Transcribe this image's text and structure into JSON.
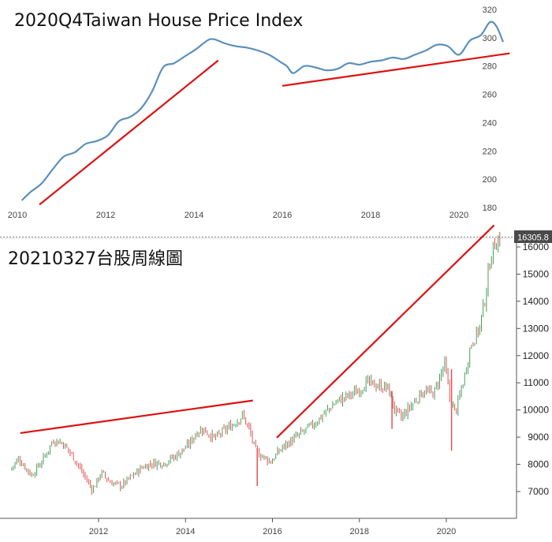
{
  "chart_data": [
    {
      "type": "line",
      "title": "2020Q4Taiwan House Price Index",
      "xlim": [
        2010,
        2021.5
      ],
      "ylim": [
        180,
        320
      ],
      "x_ticks": [
        "2010",
        "2012",
        "2014",
        "2016",
        "2018",
        "2020"
      ],
      "y_ticks": [
        "320",
        "300",
        "280",
        "260",
        "240",
        "220",
        "200",
        "180"
      ],
      "grid": false,
      "colors": {
        "series": "#5b8fbd",
        "trend": "#dd1111"
      },
      "series": [
        {
          "x": [
            2010.1,
            2010.3,
            2010.55,
            2010.8,
            2011.05,
            2011.3,
            2011.55,
            2011.8,
            2012.05,
            2012.3,
            2012.55,
            2012.8,
            2013.05,
            2013.3,
            2013.55,
            2013.8,
            2014.05,
            2014.3,
            2014.45,
            2014.7,
            2014.95,
            2015.2,
            2015.45,
            2015.7,
            2015.95,
            2016.1,
            2016.25,
            2016.5,
            2016.75,
            2017.0,
            2017.25,
            2017.5,
            2017.75,
            2018.0,
            2018.25,
            2018.5,
            2018.75,
            2019.0,
            2019.25,
            2019.5,
            2019.75,
            2020.0,
            2020.25,
            2020.5,
            2020.7,
            2020.85,
            2021.0
          ],
          "y": [
            185,
            191,
            197,
            207,
            216,
            219,
            225,
            227,
            231,
            241,
            244,
            250,
            262,
            279,
            282,
            287,
            292,
            298,
            299,
            296,
            294,
            293,
            291,
            288,
            283,
            280,
            275,
            280,
            279,
            277,
            278,
            282,
            281,
            283,
            284,
            286,
            285,
            288,
            291,
            295,
            294,
            288,
            298,
            302,
            311,
            308,
            297
          ]
        }
      ],
      "trendlines": [
        {
          "from": [
            2010.5,
            182
          ],
          "to": [
            2014.55,
            284
          ]
        },
        {
          "from": [
            2016.0,
            266
          ],
          "to": [
            2021.15,
            289
          ]
        }
      ]
    },
    {
      "type": "candlestick",
      "title": "20210327台股周線圖",
      "xlim": [
        2010.0,
        2021.6
      ],
      "ylim": [
        6000,
        16900
      ],
      "x_ticks": [
        "2012",
        "2014",
        "2016",
        "2018",
        "2020"
      ],
      "y_ticks": [
        "7000",
        "8000",
        "9000",
        "10000",
        "11000",
        "12000",
        "13000",
        "14000",
        "15000",
        "16000"
      ],
      "last_price_label": "16305.8",
      "last_price": 16305.8,
      "grid": false,
      "colors": {
        "up": "#4a9e5c",
        "down": "#e05555",
        "trend": "#dd1111",
        "axis": "#555555",
        "badge": "#4a4a4a"
      },
      "trendlines": [
        {
          "from": [
            2010.2,
            9150
          ],
          "to": [
            2015.55,
            10350
          ]
        },
        {
          "from": [
            2016.1,
            8980
          ],
          "to": [
            2021.1,
            16800
          ]
        }
      ],
      "path_points": [
        [
          2010.0,
          7800
        ],
        [
          2010.2,
          8200
        ],
        [
          2010.5,
          7600
        ],
        [
          2010.75,
          8150
        ],
        [
          2011.0,
          8900
        ],
        [
          2011.2,
          8800
        ],
        [
          2011.45,
          8300
        ],
        [
          2011.7,
          7600
        ],
        [
          2011.9,
          7050
        ],
        [
          2012.1,
          7700
        ],
        [
          2012.3,
          7350
        ],
        [
          2012.55,
          7200
        ],
        [
          2012.8,
          7550
        ],
        [
          2013.05,
          7900
        ],
        [
          2013.3,
          8050
        ],
        [
          2013.55,
          8050
        ],
        [
          2013.8,
          8300
        ],
        [
          2014.1,
          8700
        ],
        [
          2014.3,
          9200
        ],
        [
          2014.45,
          9300
        ],
        [
          2014.7,
          8950
        ],
        [
          2014.9,
          9200
        ],
        [
          2015.15,
          9500
        ],
        [
          2015.35,
          9800
        ],
        [
          2015.5,
          9300
        ],
        [
          2015.65,
          8500
        ],
        [
          2015.8,
          8300
        ],
        [
          2016.0,
          8100
        ],
        [
          2016.25,
          8600
        ],
        [
          2016.5,
          8900
        ],
        [
          2016.75,
          9200
        ],
        [
          2017.0,
          9500
        ],
        [
          2017.25,
          9900
        ],
        [
          2017.5,
          10300
        ],
        [
          2017.75,
          10500
        ],
        [
          2018.0,
          10700
        ],
        [
          2018.2,
          11000
        ],
        [
          2018.45,
          10900
        ],
        [
          2018.7,
          10800
        ],
        [
          2018.85,
          10000
        ],
        [
          2019.0,
          9700
        ],
        [
          2019.2,
          10100
        ],
        [
          2019.5,
          10700
        ],
        [
          2019.75,
          10600
        ],
        [
          2020.0,
          11700
        ],
        [
          2020.12,
          10400
        ],
        [
          2020.25,
          9900
        ],
        [
          2020.45,
          11200
        ],
        [
          2020.6,
          12400
        ],
        [
          2020.8,
          13000
        ],
        [
          2020.95,
          14300
        ],
        [
          2021.05,
          15600
        ],
        [
          2021.15,
          16100
        ],
        [
          2021.25,
          16305.8
        ]
      ]
    }
  ]
}
